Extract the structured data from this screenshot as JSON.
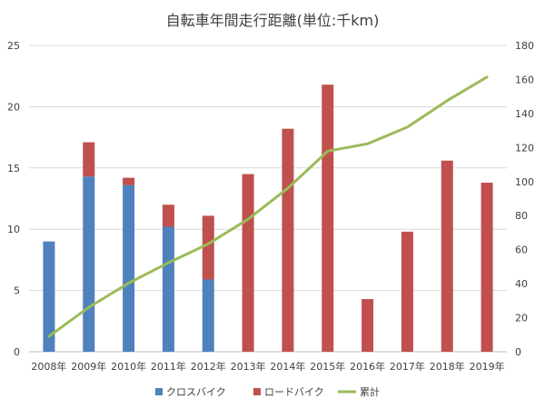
{
  "chart_data": {
    "type": "bar",
    "title": "自転車年間走行距離(単位:千km)",
    "categories": [
      "2008年",
      "2009年",
      "2010年",
      "2011年",
      "2012年",
      "2013年",
      "2014年",
      "2015年",
      "2016年",
      "2017年",
      "2018年",
      "2019年"
    ],
    "series": [
      {
        "name": "クロスバイク",
        "type": "bar",
        "axis": "left",
        "stack": "bike",
        "color": "#4f81bd",
        "values": [
          9.0,
          14.3,
          13.6,
          10.2,
          5.9,
          0,
          0,
          0,
          0,
          0,
          0,
          0
        ]
      },
      {
        "name": "ロードバイク",
        "type": "bar",
        "axis": "left",
        "stack": "bike",
        "color": "#c0504d",
        "values": [
          0,
          2.8,
          0.6,
          1.8,
          5.2,
          14.5,
          18.2,
          21.8,
          4.3,
          9.8,
          15.6,
          13.8
        ]
      },
      {
        "name": "累計",
        "type": "line",
        "axis": "right",
        "color": "#9bbb59",
        "values": [
          9.0,
          26.1,
          40.3,
          52.3,
          63.4,
          77.9,
          96.1,
          117.9,
          122.2,
          132.0,
          147.6,
          161.4
        ]
      }
    ],
    "y_left": {
      "range": [
        0,
        25
      ],
      "ticks": [
        "0",
        "5",
        "10",
        "15",
        "20",
        "25"
      ]
    },
    "y_right": {
      "range": [
        0,
        180
      ],
      "ticks": [
        "0",
        "20",
        "40",
        "60",
        "80",
        "100",
        "120",
        "140",
        "160",
        "180"
      ]
    },
    "grid": true,
    "legend_position": "bottom"
  }
}
